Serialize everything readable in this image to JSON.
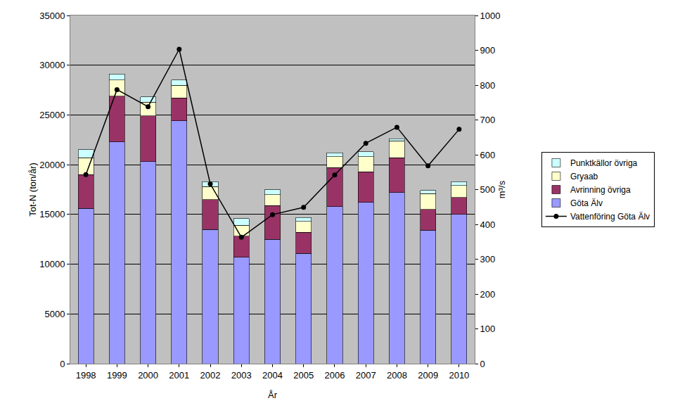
{
  "chart_data": {
    "type": "bar",
    "stacked": true,
    "grid": true,
    "legend": "right",
    "x_label": "År",
    "y_label": "Tot-N (ton/år)",
    "y2_label": "m³/s",
    "categories": [
      "1998",
      "1999",
      "2000",
      "2001",
      "2002",
      "2003",
      "2004",
      "2005",
      "2006",
      "2007",
      "2008",
      "2009",
      "2010"
    ],
    "ylim": [
      0,
      35000
    ],
    "yticks": [
      0,
      5000,
      10000,
      15000,
      20000,
      25000,
      30000,
      35000
    ],
    "y2lim": [
      0,
      1000
    ],
    "y2ticks": [
      0,
      100,
      200,
      300,
      400,
      500,
      600,
      700,
      800,
      900,
      1000
    ],
    "series": [
      {
        "name": "Göta Älv",
        "type": "bar",
        "color": "#9999ff",
        "values": [
          15600,
          22300,
          20300,
          24400,
          13500,
          10700,
          12500,
          11100,
          15800,
          16200,
          17200,
          13400,
          15000
        ]
      },
      {
        "name": "Avrinning övriga",
        "type": "bar",
        "color": "#993366",
        "values": [
          3400,
          4600,
          4600,
          2300,
          3000,
          2100,
          3400,
          2100,
          3900,
          3100,
          3500,
          2100,
          1700
        ]
      },
      {
        "name": "Gryaab",
        "type": "bar",
        "color": "#ffffcc",
        "values": [
          1700,
          1600,
          1400,
          1300,
          1300,
          1100,
          1100,
          1100,
          1100,
          1500,
          1700,
          1600,
          1200
        ]
      },
      {
        "name": "Punktkällor övriga",
        "type": "bar",
        "color": "#ccffff",
        "values": [
          800,
          600,
          500,
          500,
          500,
          700,
          500,
          400,
          400,
          500,
          200,
          300,
          400
        ]
      },
      {
        "name": "Vattenföring Göta Älv",
        "type": "line",
        "axis": "y2",
        "color": "#000000",
        "marker": "circle",
        "line_style": "solid",
        "values": [
          543,
          787,
          738,
          903,
          516,
          363,
          428,
          449,
          542,
          633,
          679,
          568,
          673
        ]
      }
    ]
  }
}
